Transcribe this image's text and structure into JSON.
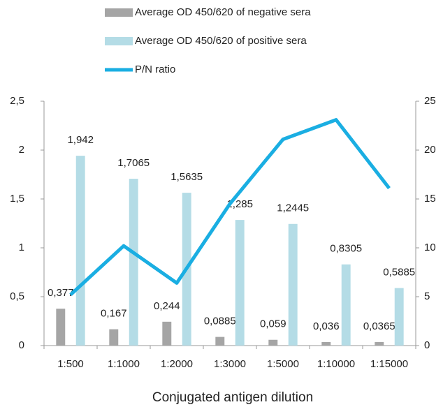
{
  "chart_data": {
    "type": "bar-line",
    "x_label": "Conjugated antigen dilution",
    "categories": [
      "1:500",
      "1:1000",
      "1:2000",
      "1:3000",
      "1:5000",
      "1:10000",
      "1:15000"
    ],
    "series": [
      {
        "name": "Average OD 450/620 of negative sera",
        "type": "bar",
        "color": "#a5a5a5",
        "values": [
          0.377,
          0.167,
          0.244,
          0.0885,
          0.059,
          0.036,
          0.0365
        ],
        "value_labels": [
          "0,377",
          "0,167",
          "0,244",
          "0,0885",
          "0,059",
          "0,036",
          "0,0365"
        ]
      },
      {
        "name": "Average OD 450/620 of positive sera",
        "type": "bar",
        "color": "#b4dce6",
        "values": [
          1.942,
          1.7065,
          1.5635,
          1.285,
          1.2445,
          0.8305,
          0.5885
        ],
        "value_labels": [
          "1,942",
          "1,7065",
          "1,5635",
          "1,285",
          "1,2445",
          "0,8305",
          "0,5885"
        ]
      },
      {
        "name": "P/N ratio",
        "type": "line",
        "axis": "y2",
        "color": "#1aaee2",
        "values": [
          5.2,
          10.2,
          6.4,
          14.5,
          21.1,
          23.1,
          16.1
        ]
      }
    ],
    "ylim": [
      0,
      2.5
    ],
    "yticks": [
      0,
      {
        "value": 0.5,
        "label": "0,5"
      },
      1,
      {
        "value": 1.5,
        "label": "1,5"
      },
      2,
      {
        "value": 2.5,
        "label": "2,5"
      }
    ],
    "y2lim": [
      0,
      25
    ],
    "y2ticks": [
      0,
      5,
      10,
      15,
      20,
      25
    ]
  }
}
